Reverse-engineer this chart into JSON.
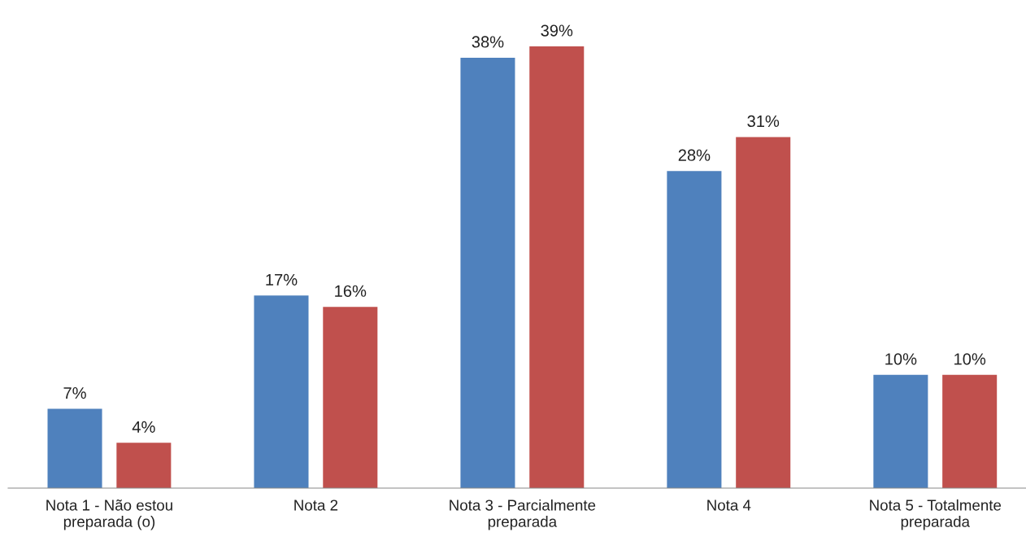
{
  "chart_data": {
    "type": "bar",
    "categories": [
      "Nota 1 - Não estou preparada (o)",
      "Nota 2",
      "Nota 3 - Parcialmente preparada",
      "Nota 4",
      "Nota 5 - Totalmente preparada"
    ],
    "series": [
      {
        "color": "#4f81bd",
        "values": [
          7,
          17,
          38,
          28,
          10
        ],
        "value_labels": [
          "7%",
          "17%",
          "38%",
          "28%",
          "10%"
        ]
      },
      {
        "color": "#c0504d",
        "values": [
          4,
          16,
          39,
          31,
          10
        ],
        "value_labels": [
          "4%",
          "16%",
          "39%",
          "31%",
          "10%"
        ]
      }
    ],
    "grid": false
  }
}
